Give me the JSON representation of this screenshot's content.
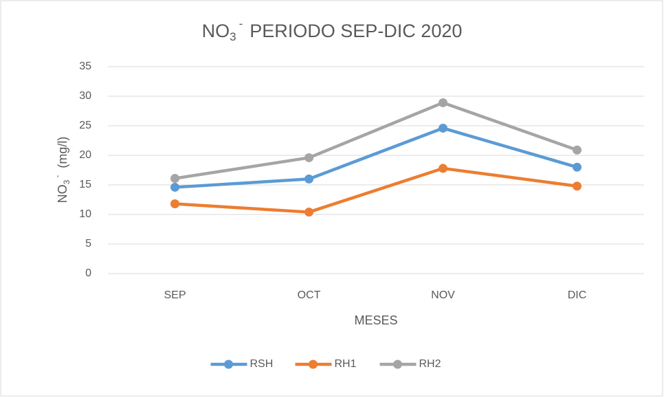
{
  "chart_data": {
    "type": "line",
    "title": {
      "base": "NO",
      "sub": "3",
      "sup": "-",
      "rest": "PERIODO SEP-DIC 2020"
    },
    "y_label": {
      "base": "NO",
      "sub": "3",
      "sup": "-",
      "rest": "(mg/l)"
    },
    "x_label": "MESES",
    "categories": [
      "SEP",
      "OCT",
      "NOV",
      "DIC"
    ],
    "series": [
      {
        "name": "RSH",
        "color": "#5b9bd5",
        "values": [
          14.6,
          16,
          24.6,
          18
        ]
      },
      {
        "name": "RH1",
        "color": "#ed7d31",
        "values": [
          11.8,
          10.4,
          17.8,
          14.8
        ]
      },
      {
        "name": "RH2",
        "color": "#a5a5a5",
        "values": [
          16.1,
          19.6,
          28.9,
          20.9
        ]
      }
    ],
    "ylim": [
      0,
      35
    ],
    "yticks": [
      0,
      5,
      10,
      15,
      20,
      25,
      30,
      35
    ],
    "grid": true,
    "legend": "bottom"
  }
}
